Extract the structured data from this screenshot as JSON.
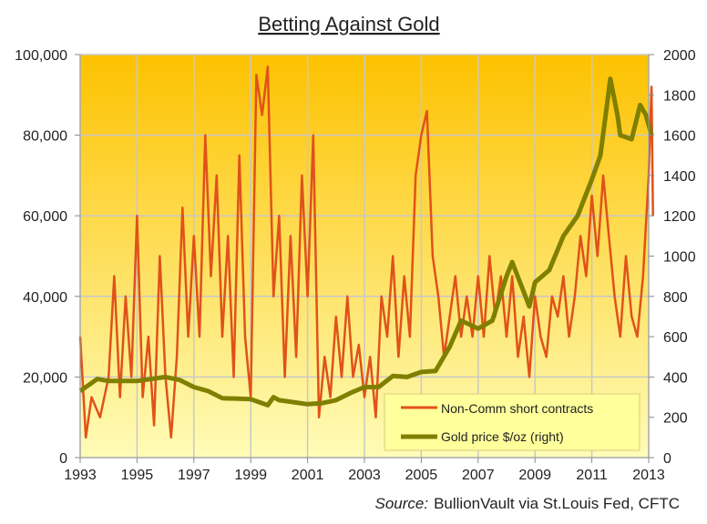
{
  "chart_data": {
    "type": "line",
    "title": "Betting Against Gold",
    "source_label": "Source:",
    "source_text": "BullionVault via  St.Louis Fed, CFTC",
    "xlim": [
      1993,
      2013
    ],
    "x_ticks": [
      "1993",
      "1995",
      "1997",
      "1999",
      "2001",
      "2003",
      "2005",
      "2007",
      "2009",
      "2011",
      "2013"
    ],
    "ylim_left": [
      0,
      100000
    ],
    "y_ticks_left": [
      "0",
      "20,000",
      "40,000",
      "60,000",
      "80,000",
      "100,000"
    ],
    "ylim_right": [
      0,
      2000
    ],
    "y_ticks_right": [
      "0",
      "200",
      "400",
      "600",
      "800",
      "1000",
      "1200",
      "1400",
      "1600",
      "1800",
      "2000"
    ],
    "grid": true,
    "legend_position": "bottom-right",
    "colors": {
      "short": "#e0521a",
      "gold": "#7f7f00",
      "bg_top": "#fdc200",
      "bg_bottom": "#fffcb8",
      "legend_bg": "#ffff9c"
    },
    "series": [
      {
        "name": "Non-Comm short contracts",
        "axis": "left",
        "x": [
          1993.0,
          1993.2,
          1993.4,
          1993.7,
          1994.0,
          1994.2,
          1994.4,
          1994.6,
          1994.8,
          1995.0,
          1995.2,
          1995.4,
          1995.6,
          1995.8,
          1996.0,
          1996.2,
          1996.4,
          1996.6,
          1996.8,
          1997.0,
          1997.2,
          1997.4,
          1997.6,
          1997.8,
          1998.0,
          1998.2,
          1998.4,
          1998.6,
          1998.8,
          1999.0,
          1999.2,
          1999.4,
          1999.6,
          1999.8,
          2000.0,
          2000.2,
          2000.4,
          2000.6,
          2000.8,
          2001.0,
          2001.2,
          2001.4,
          2001.6,
          2001.8,
          2002.0,
          2002.2,
          2002.4,
          2002.6,
          2002.8,
          2003.0,
          2003.2,
          2003.4,
          2003.6,
          2003.8,
          2004.0,
          2004.2,
          2004.4,
          2004.6,
          2004.8,
          2005.0,
          2005.2,
          2005.4,
          2005.6,
          2005.8,
          2006.0,
          2006.2,
          2006.4,
          2006.6,
          2006.8,
          2007.0,
          2007.2,
          2007.4,
          2007.6,
          2007.8,
          2008.0,
          2008.2,
          2008.4,
          2008.6,
          2008.8,
          2009.0,
          2009.2,
          2009.4,
          2009.6,
          2009.8,
          2010.0,
          2010.2,
          2010.4,
          2010.6,
          2010.8,
          2011.0,
          2011.2,
          2011.4,
          2011.6,
          2011.8,
          2012.0,
          2012.2,
          2012.4,
          2012.6,
          2012.8,
          2013.0,
          2013.1,
          2013.15
        ],
        "values": [
          30000,
          5000,
          15000,
          10000,
          20000,
          45000,
          15000,
          40000,
          20000,
          60000,
          15000,
          30000,
          8000,
          50000,
          20000,
          5000,
          25000,
          62000,
          30000,
          55000,
          30000,
          80000,
          45000,
          70000,
          30000,
          55000,
          20000,
          75000,
          30000,
          15000,
          95000,
          85000,
          97000,
          40000,
          60000,
          20000,
          55000,
          25000,
          70000,
          40000,
          80000,
          10000,
          25000,
          15000,
          35000,
          20000,
          40000,
          20000,
          28000,
          15000,
          25000,
          10000,
          40000,
          30000,
          50000,
          25000,
          45000,
          30000,
          70000,
          80000,
          86000,
          50000,
          40000,
          25000,
          35000,
          45000,
          30000,
          40000,
          30000,
          45000,
          30000,
          50000,
          35000,
          45000,
          30000,
          45000,
          25000,
          35000,
          20000,
          40000,
          30000,
          25000,
          40000,
          35000,
          45000,
          30000,
          40000,
          55000,
          45000,
          65000,
          50000,
          70000,
          55000,
          40000,
          30000,
          50000,
          35000,
          30000,
          45000,
          70000,
          92000,
          60000
        ]
      },
      {
        "name": "Gold price $/oz (right)",
        "axis": "right",
        "x": [
          1993.0,
          1993.6,
          1994.0,
          1995.0,
          1996.0,
          1996.5,
          1997.0,
          1997.5,
          1998.0,
          1999.0,
          1999.6,
          1999.8,
          2000.0,
          2001.0,
          2001.5,
          2002.0,
          2002.5,
          2003.0,
          2003.5,
          2004.0,
          2004.5,
          2005.0,
          2005.5,
          2006.0,
          2006.4,
          2007.0,
          2007.5,
          2008.0,
          2008.2,
          2008.8,
          2009.0,
          2009.5,
          2010.0,
          2010.5,
          2011.0,
          2011.3,
          2011.65,
          2011.9,
          2012.0,
          2012.4,
          2012.7,
          2012.9,
          2013.1
        ],
        "values": [
          330,
          390,
          380,
          380,
          400,
          385,
          350,
          330,
          295,
          290,
          260,
          300,
          285,
          265,
          270,
          285,
          320,
          350,
          350,
          405,
          400,
          425,
          430,
          550,
          680,
          640,
          680,
          900,
          970,
          750,
          870,
          930,
          1100,
          1200,
          1380,
          1500,
          1880,
          1700,
          1600,
          1580,
          1750,
          1700,
          1600
        ]
      }
    ]
  }
}
